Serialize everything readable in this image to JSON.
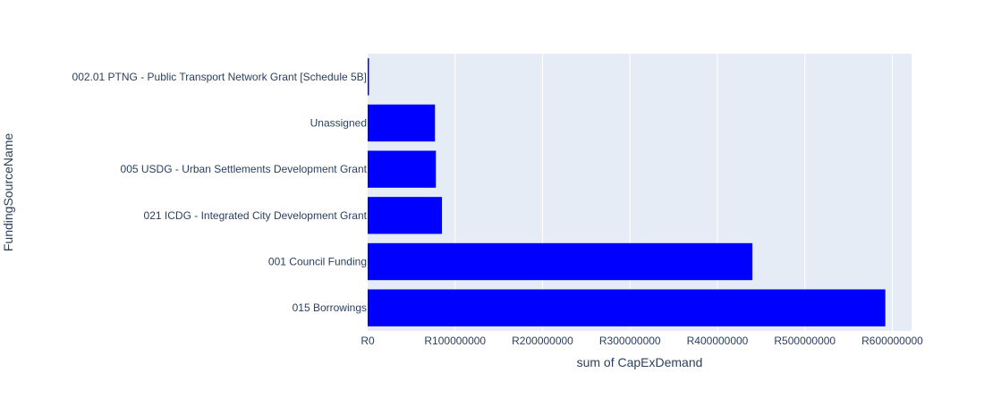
{
  "colors": {
    "bar": "#0000ff",
    "plot_background": "#e5ecf6",
    "grid": "#ffffff",
    "text": "#2a3f5f"
  },
  "chart_data": {
    "type": "bar",
    "orientation": "horizontal",
    "categories": [
      "002.01 PTNG - Public Transport Network Grant [Schedule 5B]",
      "Unassigned",
      "005 USDG - Urban Settlements Development Grant",
      "021 ICDG - Integrated City Development Grant",
      "001 Council Funding",
      "015 Borrowings"
    ],
    "values": [
      1500000,
      77000000,
      78000000,
      85000000,
      440000000,
      592000000
    ],
    "xlabel": "sum of CapExDemand",
    "ylabel": "FundingSourceName",
    "xlim": [
      0,
      622000000
    ],
    "x_ticks": [
      0,
      100000000,
      200000000,
      300000000,
      400000000,
      500000000,
      600000000
    ],
    "x_tick_labels": [
      "R0",
      "R100000000",
      "R200000000",
      "R300000000",
      "R400000000",
      "R500000000",
      "R600000000"
    ],
    "grid": true,
    "legend": "none"
  }
}
